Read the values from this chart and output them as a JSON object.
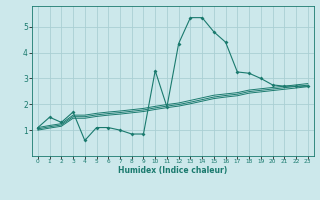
{
  "xlabel": "Humidex (Indice chaleur)",
  "background_color": "#cce8eb",
  "grid_color": "#aacfd4",
  "line_color": "#1a7a6e",
  "xlim": [
    -0.5,
    23.5
  ],
  "ylim": [
    0,
    5.8
  ],
  "yticks": [
    1,
    2,
    3,
    4,
    5
  ],
  "xticks": [
    0,
    1,
    2,
    3,
    4,
    5,
    6,
    7,
    8,
    9,
    10,
    11,
    12,
    13,
    14,
    15,
    16,
    17,
    18,
    19,
    20,
    21,
    22,
    23
  ],
  "lines": [
    {
      "x": [
        0,
        1,
        2,
        3,
        4,
        5,
        6,
        7,
        8,
        9,
        10,
        11,
        12,
        13,
        14,
        15,
        16,
        17,
        18,
        19,
        20,
        21,
        22,
        23
      ],
      "y": [
        1.1,
        1.5,
        1.3,
        1.7,
        0.6,
        1.1,
        1.1,
        1.0,
        0.85,
        0.85,
        3.3,
        1.9,
        4.35,
        5.35,
        5.35,
        4.8,
        4.4,
        3.25,
        3.2,
        3.0,
        2.75,
        2.7,
        2.7,
        2.7
      ],
      "marker": true
    },
    {
      "x": [
        0,
        1,
        2,
        3,
        4,
        5,
        6,
        7,
        8,
        9,
        10,
        11,
        12,
        13,
        14,
        15,
        16,
        17,
        18,
        19,
        20,
        21,
        22,
        23
      ],
      "y": [
        1.1,
        1.18,
        1.25,
        1.58,
        1.58,
        1.65,
        1.7,
        1.74,
        1.79,
        1.84,
        1.92,
        1.99,
        2.05,
        2.15,
        2.25,
        2.35,
        2.4,
        2.45,
        2.55,
        2.6,
        2.65,
        2.7,
        2.75,
        2.8
      ],
      "marker": false
    },
    {
      "x": [
        0,
        1,
        2,
        3,
        4,
        5,
        6,
        7,
        8,
        9,
        10,
        11,
        12,
        13,
        14,
        15,
        16,
        17,
        18,
        19,
        20,
        21,
        22,
        23
      ],
      "y": [
        1.05,
        1.13,
        1.2,
        1.52,
        1.52,
        1.59,
        1.64,
        1.68,
        1.73,
        1.78,
        1.86,
        1.93,
        1.99,
        2.08,
        2.18,
        2.28,
        2.34,
        2.39,
        2.49,
        2.54,
        2.59,
        2.64,
        2.69,
        2.74
      ],
      "marker": false
    },
    {
      "x": [
        0,
        1,
        2,
        3,
        4,
        5,
        6,
        7,
        8,
        9,
        10,
        11,
        12,
        13,
        14,
        15,
        16,
        17,
        18,
        19,
        20,
        21,
        22,
        23
      ],
      "y": [
        1.0,
        1.08,
        1.15,
        1.46,
        1.46,
        1.53,
        1.58,
        1.62,
        1.67,
        1.72,
        1.8,
        1.87,
        1.93,
        2.02,
        2.12,
        2.22,
        2.28,
        2.33,
        2.43,
        2.48,
        2.53,
        2.58,
        2.63,
        2.68
      ],
      "marker": false
    }
  ]
}
